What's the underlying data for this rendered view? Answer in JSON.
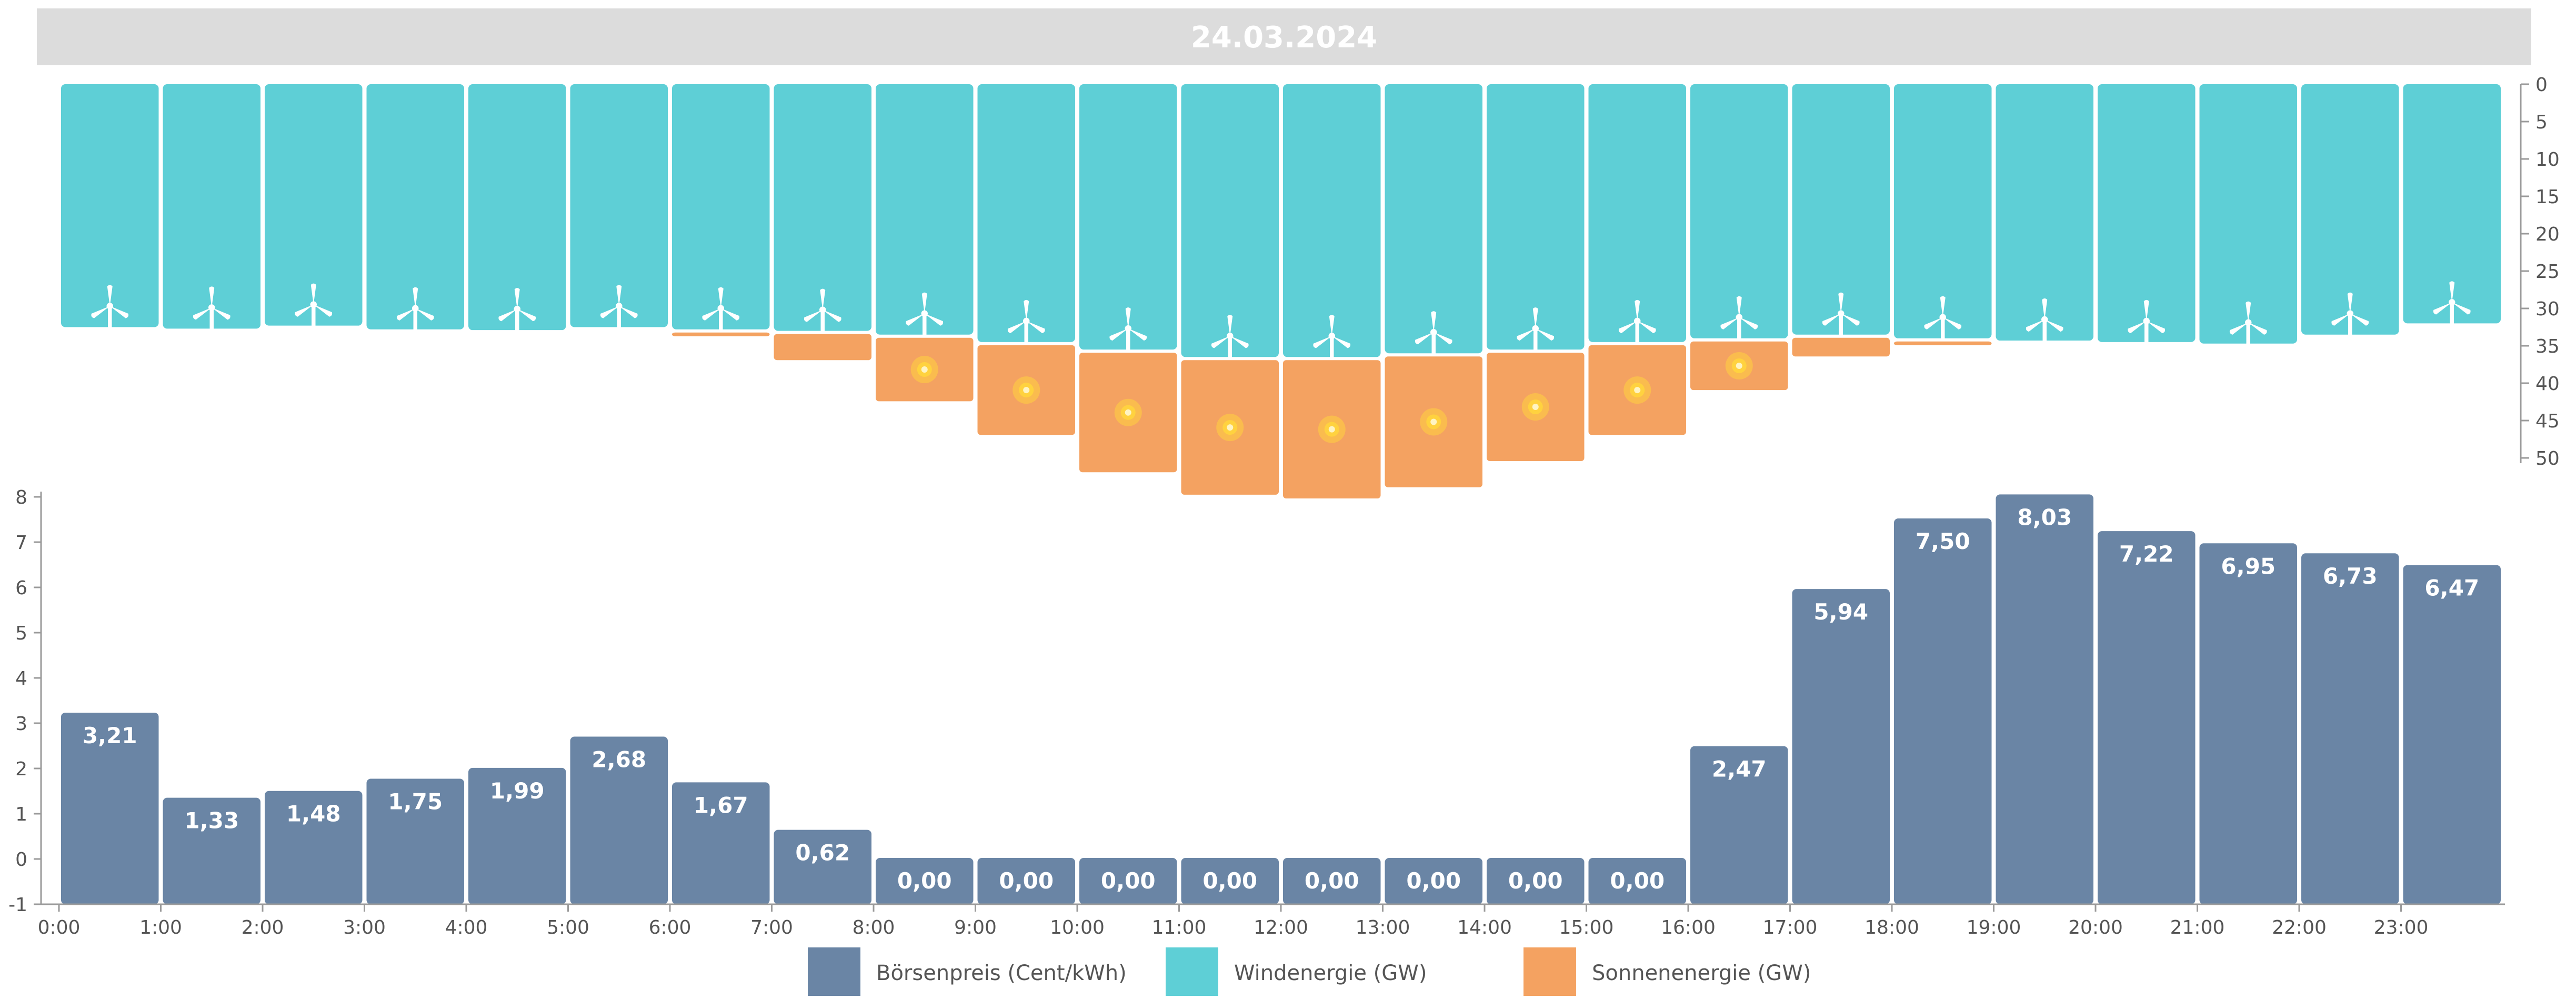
{
  "date": "24.03.2024",
  "colors": {
    "price": "#6a85a5",
    "wind": "#5ecfd6",
    "solar": "#f4a261",
    "sun_core": "#ffd23f",
    "title_bar": "#dcdcdc",
    "axis": "#9a9a9a"
  },
  "icons": {
    "wind": "wind-turbine-icon",
    "solar": "sun-icon"
  },
  "chart_data": {
    "type": "bar",
    "x_tick_labels": [
      "0:00",
      "1:00",
      "2:00",
      "3:00",
      "4:00",
      "5:00",
      "6:00",
      "7:00",
      "8:00",
      "9:00",
      "10:00",
      "11:00",
      "12:00",
      "13:00",
      "14:00",
      "15:00",
      "16:00",
      "17:00",
      "18:00",
      "19:00",
      "20:00",
      "21:00",
      "22:00",
      "23:00"
    ],
    "series": [
      {
        "name": "Börsenpreis (Cent/kWh)",
        "values": [
          3.21,
          1.33,
          1.48,
          1.75,
          1.99,
          2.68,
          1.67,
          0.62,
          0.0,
          0.0,
          0.0,
          0.0,
          0.0,
          0.0,
          0.0,
          0.0,
          2.47,
          5.94,
          7.5,
          8.03,
          7.22,
          6.95,
          6.73,
          6.47
        ],
        "labels": [
          "3,21",
          "1,33",
          "1,48",
          "1,75",
          "1,99",
          "2,68",
          "1,67",
          "0,62",
          "0,00",
          "0,00",
          "0,00",
          "0,00",
          "0,00",
          "0,00",
          "0,00",
          "0,00",
          "2,47",
          "5,94",
          "7,50",
          "8,03",
          "7,22",
          "6,95",
          "6,73",
          "6,47"
        ]
      },
      {
        "name": "Windenergie (GW)",
        "values": [
          32.5,
          32.7,
          32.3,
          32.8,
          32.9,
          32.5,
          32.8,
          33,
          33.5,
          34.5,
          35.5,
          36.5,
          36.5,
          36,
          35.5,
          34.5,
          34,
          33.5,
          34,
          34.3,
          34.5,
          34.7,
          33.5,
          32
        ]
      },
      {
        "name": "Sonnenenergie (GW)",
        "values": [
          0,
          0,
          0,
          0,
          0,
          0,
          0.5,
          3.5,
          8.5,
          12,
          16,
          18,
          18.5,
          17.5,
          14.5,
          12,
          6.5,
          2.5,
          0.5,
          0,
          0,
          0,
          0,
          0
        ]
      }
    ],
    "price_axis": {
      "ylim": [
        -1,
        8
      ],
      "ticks": [
        "8",
        "7",
        "6",
        "5",
        "4",
        "3",
        "2",
        "1",
        "0",
        "-1"
      ]
    },
    "energy_axis": {
      "ylim": [
        0,
        50
      ],
      "ticks": [
        "0",
        "5",
        "10",
        "15",
        "20",
        "25",
        "30",
        "35",
        "40",
        "45",
        "50"
      ],
      "inverted": true
    },
    "legend": {
      "position": "bottom-center"
    }
  }
}
